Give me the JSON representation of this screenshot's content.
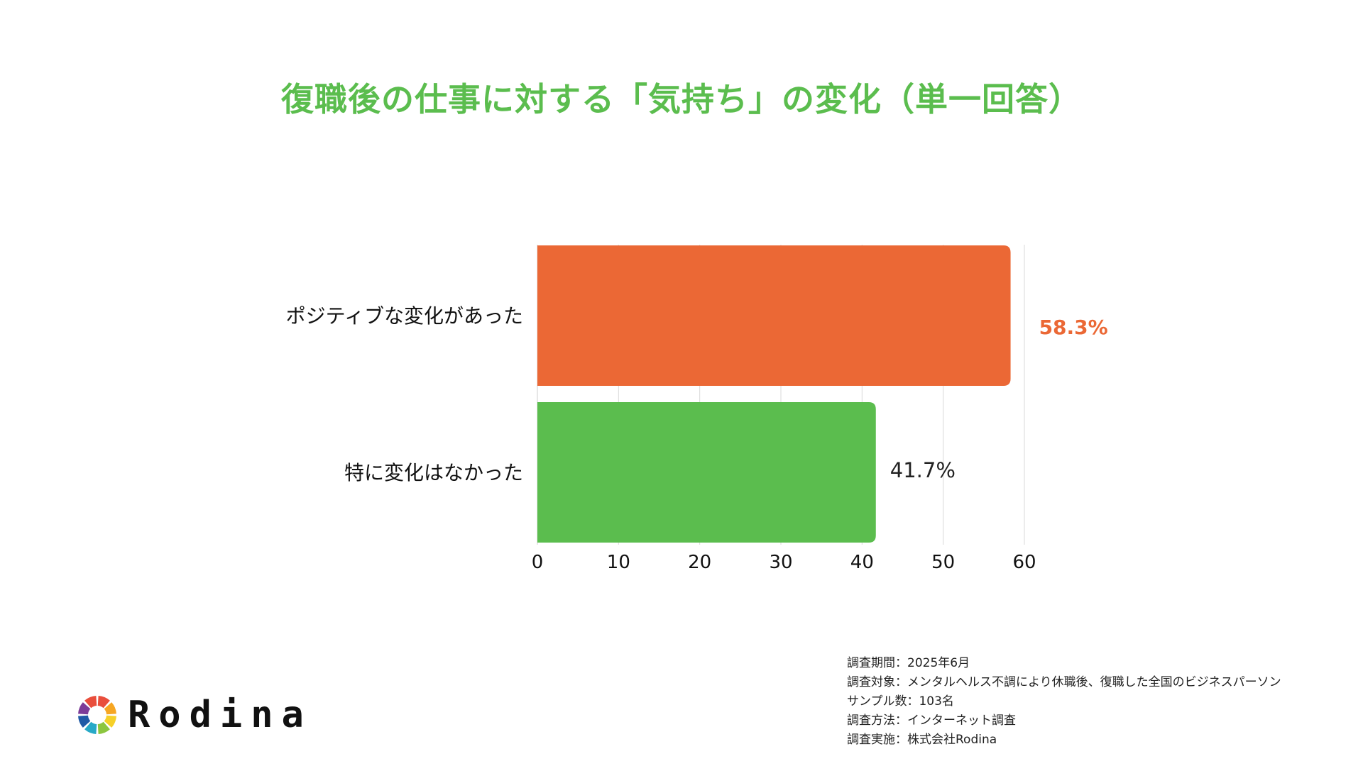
{
  "title": "復職後の仕事に対する「気持ち」の変化（単一回答）",
  "chart_data": {
    "type": "bar",
    "orientation": "horizontal",
    "categories": [
      "ポジティブな変化があった",
      "特に変化はなかった"
    ],
    "values": [
      58.3,
      41.7
    ],
    "value_labels": [
      "58.3%",
      "41.7%"
    ],
    "colors": [
      "#eb6835",
      "#5bbd4e"
    ],
    "value_label_colors": [
      "#eb6835",
      "#222222"
    ],
    "xlim": [
      0,
      60
    ],
    "xticks": [
      0,
      10,
      20,
      30,
      40,
      50,
      60
    ],
    "grid": true,
    "legend": "none"
  },
  "footnote": [
    "調査期間：2025年6月",
    "調査対象：メンタルヘルス不調により休職後、復職した全国のビジネスパーソン",
    "サンプル数：103名",
    "調査方法：インターネット調査",
    "調査実施：株式会社Rodina"
  ],
  "logo": {
    "text": "Rodina",
    "colors": [
      "#e94e3c",
      "#f6a623",
      "#f6d028",
      "#8cc63f",
      "#27a9c7",
      "#1f5aa6",
      "#7d3c98",
      "#e94e3c"
    ]
  }
}
